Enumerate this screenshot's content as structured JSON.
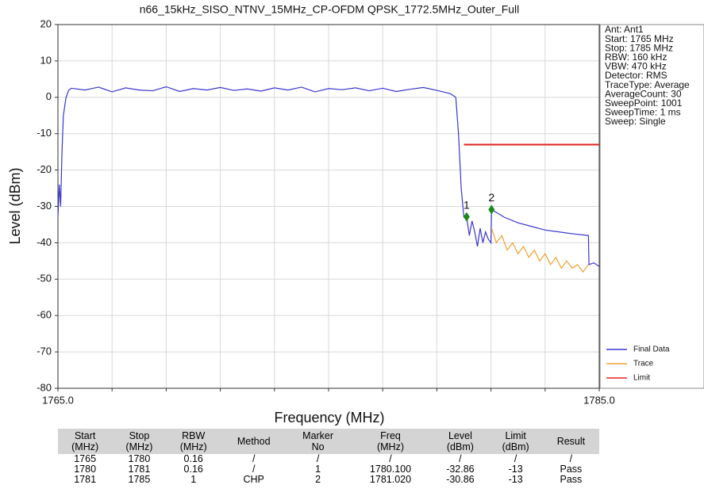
{
  "chart_data": {
    "type": "line",
    "title": "n66_15kHz_SISO_NTNV_15MHz_CP-OFDM QPSK_1772.5MHz_Outer_Full",
    "xlabel": "Frequency (MHz)",
    "ylabel": "Level (dBm)",
    "xlim": [
      1765,
      1785
    ],
    "ylim": [
      -80,
      20
    ],
    "xticks": [
      {
        "value": 1765,
        "label": "1765.0"
      },
      {
        "value": 1767,
        "label": null
      },
      {
        "value": 1769,
        "label": null
      },
      {
        "value": 1771,
        "label": null
      },
      {
        "value": 1773,
        "label": null
      },
      {
        "value": 1775,
        "label": null
      },
      {
        "value": 1777,
        "label": null
      },
      {
        "value": 1779,
        "label": null
      },
      {
        "value": 1781,
        "label": null
      },
      {
        "value": 1783,
        "label": null
      },
      {
        "value": 1785,
        "label": "1785.0"
      }
    ],
    "yticks": [
      -80,
      -70,
      -60,
      -50,
      -40,
      -30,
      -20,
      -10,
      0,
      10,
      20
    ],
    "grid": true,
    "series": [
      {
        "name": "Final Data",
        "color": "#3a35d0",
        "x": [
          1765.0,
          1765.05,
          1765.1,
          1765.15,
          1765.2,
          1765.3,
          1765.4,
          1765.5,
          1766,
          1766.5,
          1767,
          1767.5,
          1768,
          1768.5,
          1769,
          1769.5,
          1770,
          1770.5,
          1771,
          1771.5,
          1772,
          1772.5,
          1773,
          1773.5,
          1774,
          1774.5,
          1775,
          1775.5,
          1776,
          1776.5,
          1777,
          1777.5,
          1778,
          1778.5,
          1779,
          1779.5,
          1779.7,
          1779.8,
          1779.9,
          1780.0,
          1780.1,
          1780.2,
          1780.3,
          1780.4,
          1780.5,
          1780.6,
          1780.7,
          1780.8,
          1780.9,
          1781.0,
          1781.02,
          1781.5,
          1782,
          1782.5,
          1783,
          1783.5,
          1784,
          1784.6,
          1784.62,
          1784.8,
          1785
        ],
        "values": [
          -33,
          -24,
          -30,
          -15,
          -5,
          0,
          2,
          2.5,
          2,
          2.8,
          1.5,
          2.6,
          2,
          1.8,
          2.9,
          1.6,
          2.4,
          2,
          2.7,
          1.9,
          2.3,
          1.7,
          2.6,
          2,
          2.8,
          1.5,
          2.4,
          2.1,
          2.6,
          1.8,
          2.5,
          1.6,
          2.2,
          2.7,
          1.9,
          1,
          0,
          -10,
          -25,
          -33,
          -32.86,
          -38,
          -34,
          -37,
          -41,
          -36,
          -40,
          -37,
          -39,
          -40,
          -30.86,
          -33,
          -34.5,
          -35.5,
          -36.5,
          -37,
          -37.5,
          -38,
          -46,
          -45.5,
          -46.5
        ]
      },
      {
        "name": "Trace",
        "color": "#f0a030",
        "x": [
          1781.02,
          1781.2,
          1781.4,
          1781.6,
          1781.8,
          1782,
          1782.2,
          1782.4,
          1782.6,
          1782.8,
          1783,
          1783.2,
          1783.4,
          1783.6,
          1783.8,
          1784,
          1784.2,
          1784.4,
          1784.6
        ],
        "values": [
          -36,
          -40,
          -38,
          -42,
          -40,
          -43,
          -41,
          -44,
          -42,
          -45,
          -43,
          -46,
          -44,
          -47,
          -45,
          -47,
          -46,
          -48,
          -46
        ]
      },
      {
        "name": "Limit",
        "color": "#e02020",
        "x": [
          1780,
          1785
        ],
        "values": [
          -13,
          -13
        ]
      }
    ],
    "markers": [
      {
        "label": "1",
        "x": 1780.1,
        "y": -32.86,
        "color": "#1a8a1a"
      },
      {
        "label": "2",
        "x": 1781.02,
        "y": -30.86,
        "color": "#1a8a1a"
      }
    ],
    "info": [
      "Ant: Ant1",
      "Start: 1765 MHz",
      "Stop: 1785 MHz",
      "RBW: 160 kHz",
      "VBW: 470 kHz",
      "Detector: RMS",
      "TraceType: Average",
      "AverageCount: 30",
      "SweepPoint: 1001",
      "SweepTime: 1 ms",
      "Sweep: Single"
    ]
  },
  "table": {
    "headers": [
      [
        "Start",
        "(MHz)"
      ],
      [
        "Stop",
        "(MHz)"
      ],
      [
        "RBW",
        "(MHz)"
      ],
      [
        "Method"
      ],
      [
        "Marker",
        "No"
      ],
      [
        "Freq",
        "(MHz)"
      ],
      [
        "Level",
        "(dBm)"
      ],
      [
        "Limit",
        "(dBm)"
      ],
      [
        "Result"
      ]
    ],
    "rows": [
      [
        "1765",
        "1780",
        "0.16",
        "/",
        "/",
        "/",
        "/",
        "/",
        "/"
      ],
      [
        "1780",
        "1781",
        "0.16",
        "/",
        "1",
        "1780.100",
        "-32.86",
        "-13",
        "Pass"
      ],
      [
        "1781",
        "1785",
        "1",
        "CHP",
        "2",
        "1781.020",
        "-30.86",
        "-13",
        "Pass"
      ]
    ]
  }
}
